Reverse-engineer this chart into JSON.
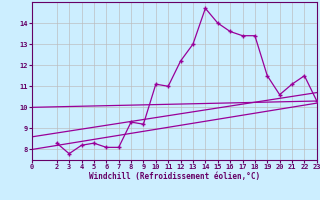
{
  "xlabel": "Windchill (Refroidissement éolien,°C)",
  "bg_color": "#cceeff",
  "line_color": "#990099",
  "grid_color": "#bbbbbb",
  "axis_color": "#660066",
  "text_color": "#660066",
  "xlim": [
    0,
    23
  ],
  "ylim": [
    7.5,
    15.0
  ],
  "yticks": [
    8,
    9,
    10,
    11,
    12,
    13,
    14
  ],
  "xticks": [
    0,
    2,
    3,
    4,
    5,
    6,
    7,
    8,
    9,
    10,
    11,
    12,
    13,
    14,
    15,
    16,
    17,
    18,
    19,
    20,
    21,
    22,
    23
  ],
  "main_x": [
    2,
    3,
    4,
    5,
    6,
    7,
    8,
    9,
    10,
    11,
    12,
    13,
    14,
    15,
    16,
    17,
    18,
    19,
    20,
    21,
    22,
    23
  ],
  "main_y": [
    8.3,
    7.8,
    8.2,
    8.3,
    8.1,
    8.1,
    9.3,
    9.2,
    11.1,
    11.0,
    12.2,
    13.0,
    14.7,
    14.0,
    13.6,
    13.4,
    13.4,
    11.5,
    10.6,
    11.1,
    11.5,
    10.3
  ],
  "line2_x": [
    0,
    23
  ],
  "line2_y": [
    10.0,
    10.3
  ],
  "line3_x": [
    0,
    23
  ],
  "line3_y": [
    8.0,
    10.2
  ],
  "line4_x": [
    0,
    23
  ],
  "line4_y": [
    8.6,
    10.7
  ]
}
